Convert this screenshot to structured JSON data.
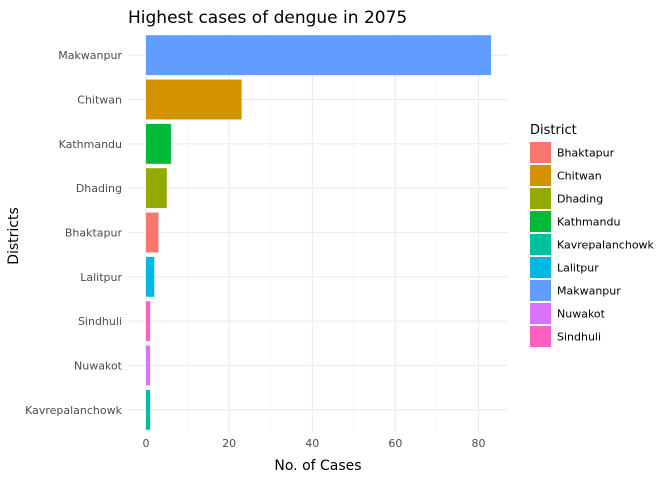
{
  "chart_data": {
    "type": "bar",
    "orientation": "horizontal",
    "title": "Highest cases of dengue in 2075",
    "xlabel": "No. of Cases",
    "ylabel": "Districts",
    "xlim": [
      0,
      87
    ],
    "xticks": [
      0,
      20,
      40,
      60,
      80
    ],
    "grid": true,
    "categories": [
      "Makwanpur",
      "Chitwan",
      "Kathmandu",
      "Dhading",
      "Bhaktapur",
      "Lalitpur",
      "Sindhuli",
      "Nuwakot",
      "Kavrepalanchowk"
    ],
    "values": [
      83,
      23,
      6,
      5,
      3,
      2,
      1,
      1,
      1
    ],
    "legend": {
      "title": "District",
      "position": "right",
      "entries": [
        {
          "name": "Bhaktapur",
          "color": "#F8766D"
        },
        {
          "name": "Chitwan",
          "color": "#D39200"
        },
        {
          "name": "Dhading",
          "color": "#93AA00"
        },
        {
          "name": "Kathmandu",
          "color": "#00BA38"
        },
        {
          "name": "Kavrepalanchowk",
          "color": "#00C19F"
        },
        {
          "name": "Lalitpur",
          "color": "#00B9E3"
        },
        {
          "name": "Makwanpur",
          "color": "#619CFF"
        },
        {
          "name": "Nuwakot",
          "color": "#DB72FB"
        },
        {
          "name": "Sindhuli",
          "color": "#FF61C3"
        }
      ]
    }
  }
}
